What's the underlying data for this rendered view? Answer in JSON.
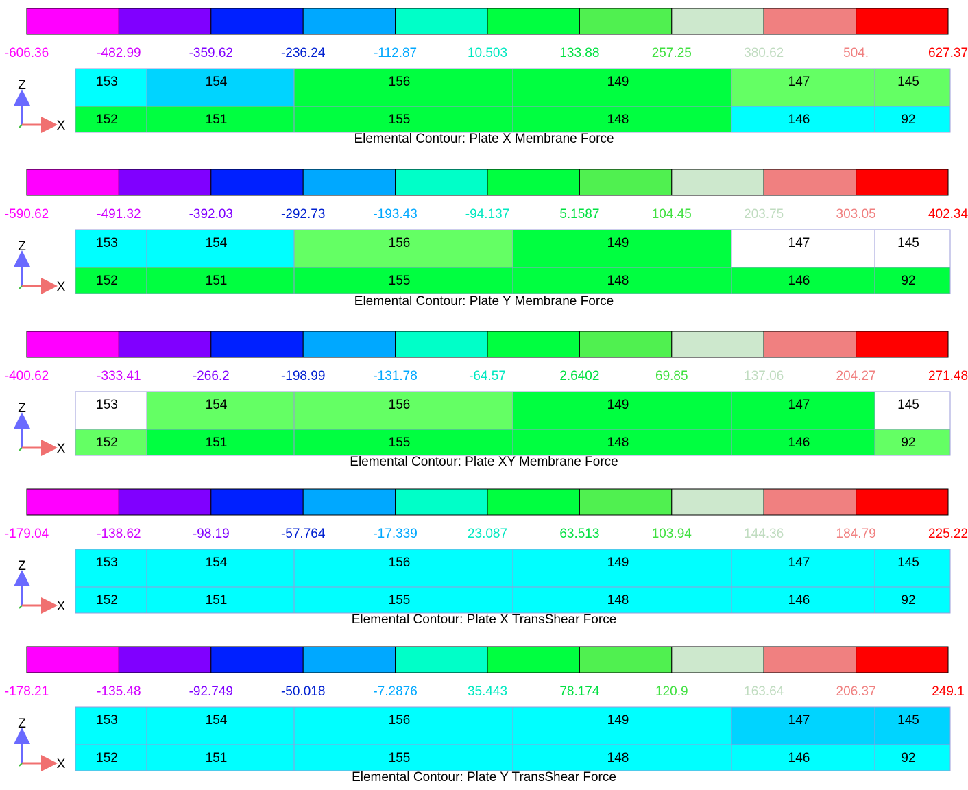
{
  "legend_colors": [
    "#ff00ff",
    "#8000ff",
    "#0020ff",
    "#00a8ff",
    "#00ffc8",
    "#00ff40",
    "#50f050",
    "#cde8cd",
    "#f08080",
    "#ff0000"
  ],
  "label_colors": [
    "#ff00ff",
    "#d000ff",
    "#8000ff",
    "#0020d0",
    "#00a8ff",
    "#00e8c0",
    "#00e040",
    "#40e040",
    "#c0dcc0",
    "#f08080",
    "#ff0000"
  ],
  "axis": {
    "z": "Z",
    "x": "X"
  },
  "panels": [
    {
      "caption": "Elemental Contour: Plate X Membrane Force",
      "labels": [
        "-606.36",
        "-482.99",
        "-359.62",
        "-236.24",
        "-112.87",
        "10.503",
        "133.88",
        "257.25",
        "380.62",
        "504.",
        "627.37"
      ],
      "cells": [
        [
          {
            "label": "153",
            "color": "#00ffff"
          },
          {
            "label": "154",
            "color": "#00d4ff"
          },
          {
            "label": "156",
            "color": "#00ff40"
          },
          {
            "label": "149",
            "color": "#00ff40"
          },
          {
            "label": "147",
            "color": "#64ff64"
          },
          {
            "label": "145",
            "color": "#64ff64"
          }
        ],
        [
          {
            "label": "152",
            "color": "#00ff40"
          },
          {
            "label": "151",
            "color": "#00ff40"
          },
          {
            "label": "155",
            "color": "#00ff40"
          },
          {
            "label": "148",
            "color": "#00ff40"
          },
          {
            "label": "146",
            "color": "#00ffff"
          },
          {
            "label": "92",
            "color": "#00ffff"
          }
        ]
      ]
    },
    {
      "caption": "Elemental Contour: Plate Y Membrane Force",
      "labels": [
        "-590.62",
        "-491.32",
        "-392.03",
        "-292.73",
        "-193.43",
        "-94.137",
        "5.1587",
        "104.45",
        "203.75",
        "303.05",
        "402.34"
      ],
      "cells": [
        [
          {
            "label": "153",
            "color": "#00ffff"
          },
          {
            "label": "154",
            "color": "#00ffff"
          },
          {
            "label": "156",
            "color": "#64ff64"
          },
          {
            "label": "149",
            "color": "#00ff40"
          },
          {
            "label": "147",
            "color": "#ffffff"
          },
          {
            "label": "145",
            "color": "#ffffff"
          }
        ],
        [
          {
            "label": "152",
            "color": "#00ff40"
          },
          {
            "label": "151",
            "color": "#00ff40"
          },
          {
            "label": "155",
            "color": "#00ff40"
          },
          {
            "label": "148",
            "color": "#00ff40"
          },
          {
            "label": "146",
            "color": "#00ff40"
          },
          {
            "label": "92",
            "color": "#00ff40"
          }
        ]
      ]
    },
    {
      "caption": "Elemental Contour: Plate XY Membrane Force",
      "labels": [
        "-400.62",
        "-333.41",
        "-266.2",
        "-198.99",
        "-131.78",
        "-64.57",
        "2.6402",
        "69.85",
        "137.06",
        "204.27",
        "271.48"
      ],
      "cells": [
        [
          {
            "label": "153",
            "color": "#ffffff"
          },
          {
            "label": "154",
            "color": "#64ff64"
          },
          {
            "label": "156",
            "color": "#64ff64"
          },
          {
            "label": "149",
            "color": "#00ff40"
          },
          {
            "label": "147",
            "color": "#00ff40"
          },
          {
            "label": "145",
            "color": "#ffffff"
          }
        ],
        [
          {
            "label": "152",
            "color": "#64ff64"
          },
          {
            "label": "151",
            "color": "#00ff40"
          },
          {
            "label": "155",
            "color": "#00ff40"
          },
          {
            "label": "148",
            "color": "#00ff40"
          },
          {
            "label": "146",
            "color": "#00ff40"
          },
          {
            "label": "92",
            "color": "#64ff64"
          }
        ]
      ]
    },
    {
      "caption": "Elemental Contour: Plate X TransShear Force",
      "labels": [
        "-179.04",
        "-138.62",
        "-98.19",
        "-57.764",
        "-17.339",
        "23.087",
        "63.513",
        "103.94",
        "144.36",
        "184.79",
        "225.22"
      ],
      "cells": [
        [
          {
            "label": "153",
            "color": "#00ffff"
          },
          {
            "label": "154",
            "color": "#00ffff"
          },
          {
            "label": "156",
            "color": "#00ffff"
          },
          {
            "label": "149",
            "color": "#00ffff"
          },
          {
            "label": "147",
            "color": "#00ffff"
          },
          {
            "label": "145",
            "color": "#00ffff"
          }
        ],
        [
          {
            "label": "152",
            "color": "#00ffff"
          },
          {
            "label": "151",
            "color": "#00ffff"
          },
          {
            "label": "155",
            "color": "#00ffff"
          },
          {
            "label": "148",
            "color": "#00ffff"
          },
          {
            "label": "146",
            "color": "#00ffff"
          },
          {
            "label": "92",
            "color": "#00ffff"
          }
        ]
      ]
    },
    {
      "caption": "Elemental Contour: Plate Y TransShear Force",
      "labels": [
        "-178.21",
        "-135.48",
        "-92.749",
        "-50.018",
        "-7.2876",
        "35.443",
        "78.174",
        "120.9",
        "163.64",
        "206.37",
        "249.1"
      ],
      "cells": [
        [
          {
            "label": "153",
            "color": "#00ffff"
          },
          {
            "label": "154",
            "color": "#00ffff"
          },
          {
            "label": "156",
            "color": "#00ffff"
          },
          {
            "label": "149",
            "color": "#00ffff"
          },
          {
            "label": "147",
            "color": "#00d4ff"
          },
          {
            "label": "145",
            "color": "#00d4ff"
          }
        ],
        [
          {
            "label": "152",
            "color": "#00ffff"
          },
          {
            "label": "151",
            "color": "#00ffff"
          },
          {
            "label": "155",
            "color": "#00ffff"
          },
          {
            "label": "148",
            "color": "#00ffff"
          },
          {
            "label": "146",
            "color": "#00ffff"
          },
          {
            "label": "92",
            "color": "#00ffff"
          }
        ]
      ]
    }
  ]
}
